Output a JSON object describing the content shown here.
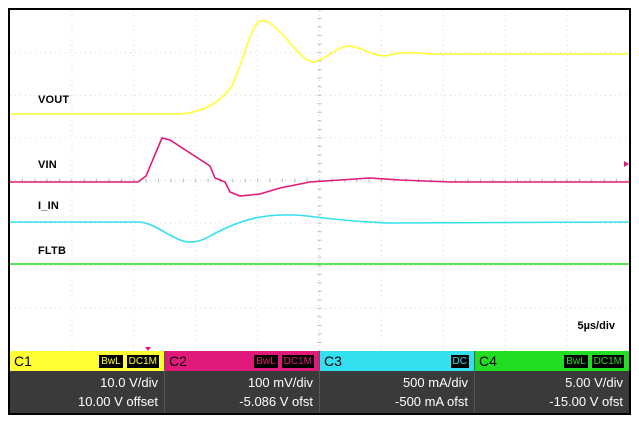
{
  "traces": {
    "vout_label": "VOUT",
    "vin_label": "VIN",
    "iin_label": "I_IN",
    "fltb_label": "FLTB",
    "timebase": "5µs/div"
  },
  "colors": {
    "c1": "#ffff33",
    "c2": "#e0197a",
    "c3": "#33e0f0",
    "c4": "#22dd22",
    "grid": "#d8d8d8"
  },
  "channels": [
    {
      "name": "C1",
      "bw": "BwL",
      "coupling": "DC1M",
      "scale": "10.0 V/div",
      "offset": "10.00 V offset"
    },
    {
      "name": "C2",
      "bw": "BwL",
      "coupling": "DC1M",
      "scale": "100 mV/div",
      "offset": "-5.086 V ofst"
    },
    {
      "name": "C3",
      "bw": "",
      "coupling": "DC",
      "scale": "500 mA/div",
      "offset": "-500 mA ofst"
    },
    {
      "name": "C4",
      "bw": "BwL",
      "coupling": "DC1M",
      "scale": "5.00 V/div",
      "offset": "-15.00 V ofst"
    }
  ]
}
